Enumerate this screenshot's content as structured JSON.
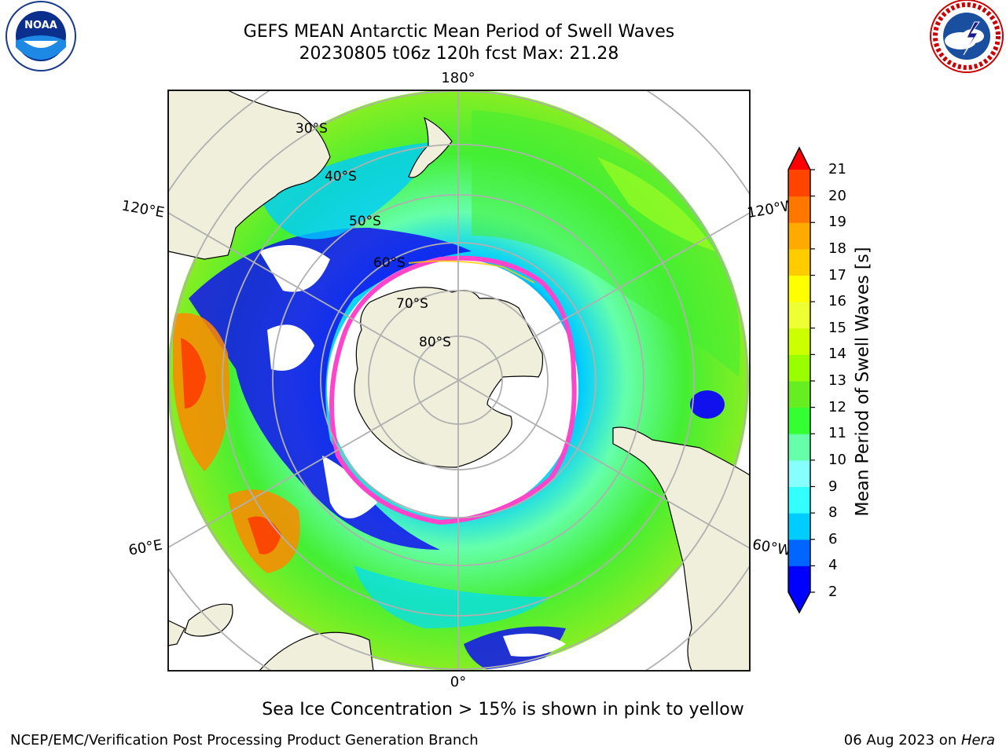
{
  "header": {
    "title_line1": "GEFS MEAN Antarctic Mean Period of Swell Waves",
    "title_line2": "20230805 t06z 120h fcst   Max: 21.28"
  },
  "logos": {
    "left": {
      "name": "noaa-logo",
      "text": "NOAA",
      "ring_text": "NATIONAL OCEANIC AND ATMOSPHERIC ADMINISTRATION · U.S. DEPARTMENT OF COMMERCE"
    },
    "right": {
      "name": "nws-logo",
      "ring_text": "NATIONAL WEATHER SERVICE"
    }
  },
  "map": {
    "projection": "south-polar-stereographic",
    "lon_labels": {
      "top": "180°",
      "bottom": "0°",
      "left_upper": "120°E",
      "left_lower": "60°E",
      "right_upper": "120°W",
      "right_lower": "60°W"
    },
    "lat_labels": [
      "30°S",
      "40°S",
      "50°S",
      "60°S",
      "70°S",
      "80°S"
    ],
    "colors": {
      "land": "#efefdc",
      "ice_edge": "#ff44cc",
      "grid": "#b0b0b0"
    }
  },
  "colorbar": {
    "label": "Mean Period of Swell Waves [s]",
    "ticks": [
      "2",
      "4",
      "6",
      "8",
      "9",
      "10",
      "11",
      "12",
      "13",
      "14",
      "15",
      "16",
      "17",
      "18",
      "19",
      "20",
      "21"
    ],
    "colors": [
      "#0000ff",
      "#0066ff",
      "#00ccff",
      "#33ffff",
      "#88ffff",
      "#66ffaa",
      "#33ff33",
      "#66ee22",
      "#99ff00",
      "#ccff00",
      "#eeff33",
      "#ffff00",
      "#ffcc00",
      "#ffaa00",
      "#ff7700",
      "#ff4400",
      "#ff1100"
    ],
    "under_color": "#0000ff",
    "over_color": "#ff0000"
  },
  "notes": {
    "ice": "Sea Ice Concentration > 15% is shown in pink to yellow"
  },
  "footer": {
    "left": "NCEP/EMC/Verification Post Processing Product Generation Branch",
    "right_prefix": "06 Aug 2023 on ",
    "right_machine": "Hera"
  }
}
